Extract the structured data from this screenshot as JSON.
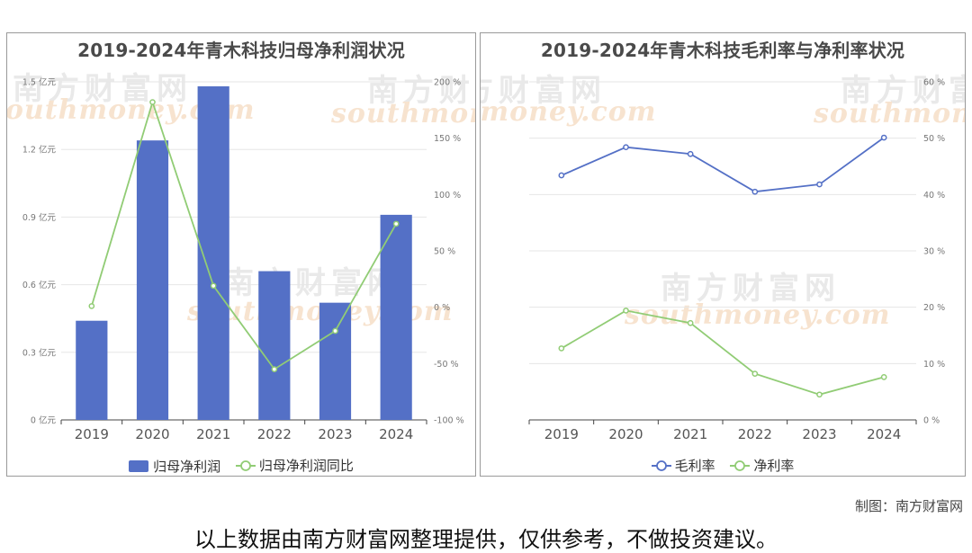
{
  "watermark": {
    "brand": "南方财富网",
    "domain": "southmoney.com"
  },
  "credit": "制图：南方财富网",
  "disclaimer": "以上数据由南方财富网整理提供，仅供参考，不做投资建议。",
  "chart_data": [
    {
      "type": "bar",
      "title": "2019-2024年青木科技归母净利润状况",
      "categories": [
        "2019",
        "2020",
        "2021",
        "2022",
        "2023",
        "2024"
      ],
      "y_left": {
        "ticks": [
          "0 亿元",
          "0.3 亿元",
          "0.6 亿元",
          "0.9 亿元",
          "1.2 亿元",
          "1.5 亿元"
        ],
        "ylim": [
          0,
          1.5
        ]
      },
      "y_right": {
        "ticks": [
          "-100 %",
          "-50 %",
          "0 %",
          "50 %",
          "100 %",
          "150 %",
          "200 %"
        ],
        "ylim": [
          -100,
          200
        ]
      },
      "series": [
        {
          "name": "归母净利润",
          "type": "bar",
          "axis": "left",
          "color": "#5470c6",
          "values": [
            0.44,
            1.24,
            1.48,
            0.66,
            0.52,
            0.91
          ]
        },
        {
          "name": "归母净利润同比",
          "type": "line",
          "axis": "right",
          "color": "#91cc75",
          "values": [
            1,
            182,
            19,
            -55,
            -21,
            74
          ]
        }
      ],
      "grid": true,
      "legend": "bottom-center"
    },
    {
      "type": "line",
      "title": "2019-2024年青木科技毛利率与净利率状况",
      "categories": [
        "2019",
        "2020",
        "2021",
        "2022",
        "2023",
        "2024"
      ],
      "y_right": {
        "ticks": [
          "0 %",
          "10 %",
          "20 %",
          "30 %",
          "40 %",
          "50 %",
          "60 %"
        ],
        "ylim": [
          0,
          60
        ]
      },
      "series": [
        {
          "name": "毛利率",
          "type": "line",
          "axis": "right",
          "color": "#5470c6",
          "values": [
            43.4,
            48.4,
            47.2,
            40.5,
            41.8,
            50.1
          ]
        },
        {
          "name": "净利率",
          "type": "line",
          "axis": "right",
          "color": "#91cc75",
          "values": [
            12.7,
            19.4,
            17.2,
            8.2,
            4.5,
            7.6
          ]
        }
      ],
      "grid": true,
      "legend": "bottom-center"
    }
  ]
}
